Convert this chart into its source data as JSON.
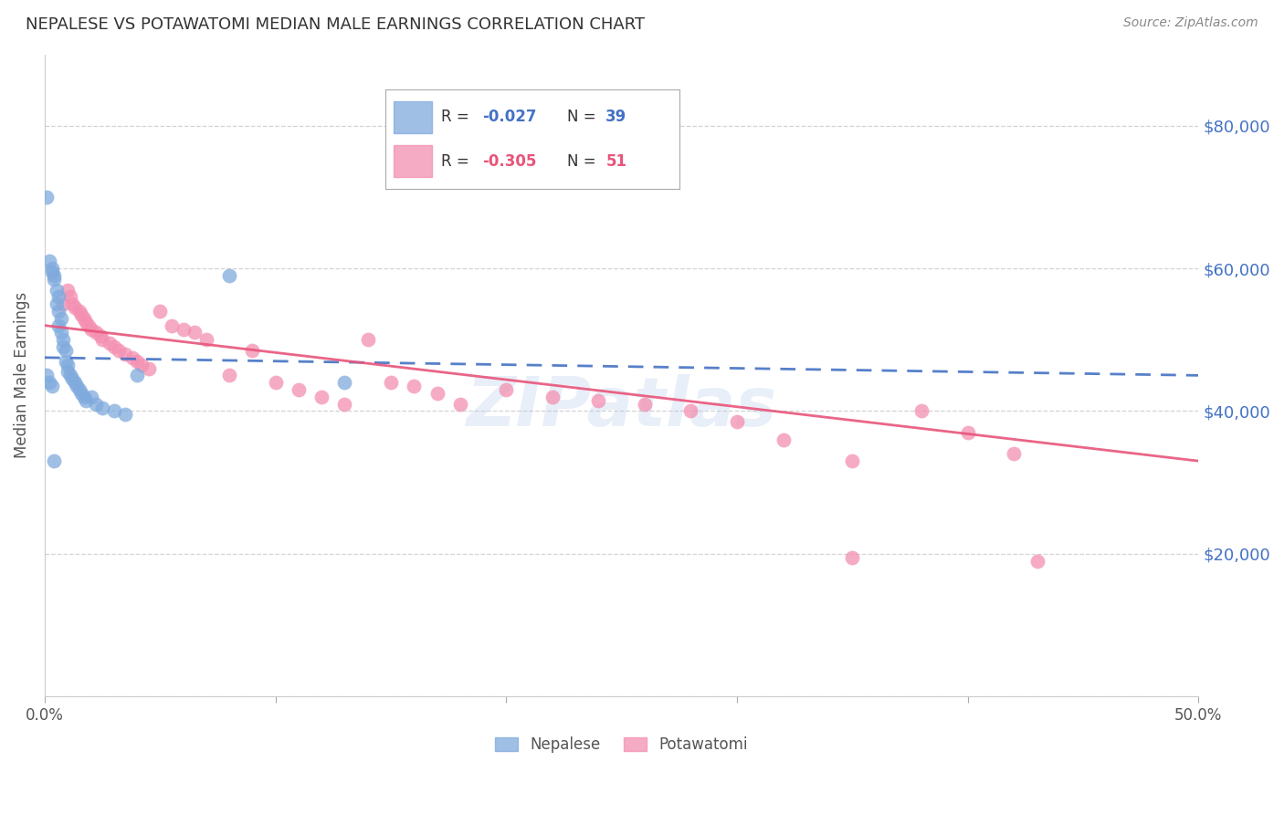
{
  "title": "NEPALESE VS POTAWATOMI MEDIAN MALE EARNINGS CORRELATION CHART",
  "source": "Source: ZipAtlas.com",
  "ylabel": "Median Male Earnings",
  "xlim": [
    0.0,
    0.5
  ],
  "ylim": [
    0,
    90000
  ],
  "yticks": [
    0,
    20000,
    40000,
    60000,
    80000
  ],
  "ytick_labels": [
    "",
    "$20,000",
    "$40,000",
    "$60,000",
    "$80,000"
  ],
  "xticks": [
    0.0,
    0.1,
    0.2,
    0.3,
    0.4,
    0.5
  ],
  "xtick_labels": [
    "0.0%",
    "",
    "",
    "",
    "",
    "50.0%"
  ],
  "nepalese_R": -0.027,
  "nepalese_N": 39,
  "potawatomi_R": -0.305,
  "potawatomi_N": 51,
  "nepalese_color": "#7faadd",
  "potawatomi_color": "#f48fb1",
  "nepalese_line_color": "#4472c4",
  "potawatomi_line_color": "#e8547a",
  "background_color": "#ffffff",
  "grid_color": "#c8c8c8",
  "title_color": "#333333",
  "ylabel_color": "#555555",
  "source_color": "#888888",
  "right_ylabel_color": "#4472c4",
  "nepalese_x": [
    0.001,
    0.002,
    0.003,
    0.003,
    0.004,
    0.004,
    0.005,
    0.005,
    0.006,
    0.006,
    0.006,
    0.007,
    0.007,
    0.008,
    0.008,
    0.009,
    0.009,
    0.01,
    0.01,
    0.011,
    0.012,
    0.013,
    0.014,
    0.015,
    0.016,
    0.017,
    0.018,
    0.02,
    0.022,
    0.025,
    0.03,
    0.035,
    0.04,
    0.08,
    0.13,
    0.001,
    0.002,
    0.003,
    0.004
  ],
  "nepalese_y": [
    70000,
    61000,
    59500,
    60000,
    58500,
    59000,
    57000,
    55000,
    56000,
    54000,
    52000,
    53000,
    51000,
    50000,
    49000,
    48500,
    47000,
    46500,
    45500,
    45000,
    44500,
    44000,
    43500,
    43000,
    42500,
    42000,
    41500,
    42000,
    41000,
    40500,
    40000,
    39500,
    45000,
    59000,
    44000,
    45000,
    44000,
    43500,
    33000
  ],
  "potawatomi_x": [
    0.008,
    0.01,
    0.011,
    0.012,
    0.013,
    0.015,
    0.016,
    0.017,
    0.018,
    0.019,
    0.02,
    0.022,
    0.024,
    0.025,
    0.028,
    0.03,
    0.032,
    0.035,
    0.038,
    0.04,
    0.042,
    0.045,
    0.05,
    0.055,
    0.06,
    0.065,
    0.07,
    0.08,
    0.09,
    0.1,
    0.11,
    0.12,
    0.13,
    0.14,
    0.15,
    0.16,
    0.17,
    0.18,
    0.2,
    0.22,
    0.24,
    0.26,
    0.28,
    0.3,
    0.32,
    0.35,
    0.38,
    0.4,
    0.42,
    0.43,
    0.35
  ],
  "potawatomi_y": [
    55000,
    57000,
    56000,
    55000,
    54500,
    54000,
    53500,
    53000,
    52500,
    52000,
    51500,
    51000,
    50500,
    50000,
    49500,
    49000,
    48500,
    48000,
    47500,
    47000,
    46500,
    46000,
    54000,
    52000,
    51500,
    51000,
    50000,
    45000,
    48500,
    44000,
    43000,
    42000,
    41000,
    50000,
    44000,
    43500,
    42500,
    41000,
    43000,
    42000,
    41500,
    41000,
    40000,
    38500,
    36000,
    33000,
    40000,
    37000,
    34000,
    19000,
    19500
  ],
  "nepalese_line_x": [
    0.0,
    0.5
  ],
  "nepalese_line_y": [
    47500,
    45000
  ],
  "potawatomi_line_x": [
    0.0,
    0.5
  ],
  "potawatomi_line_y": [
    52000,
    33000
  ]
}
